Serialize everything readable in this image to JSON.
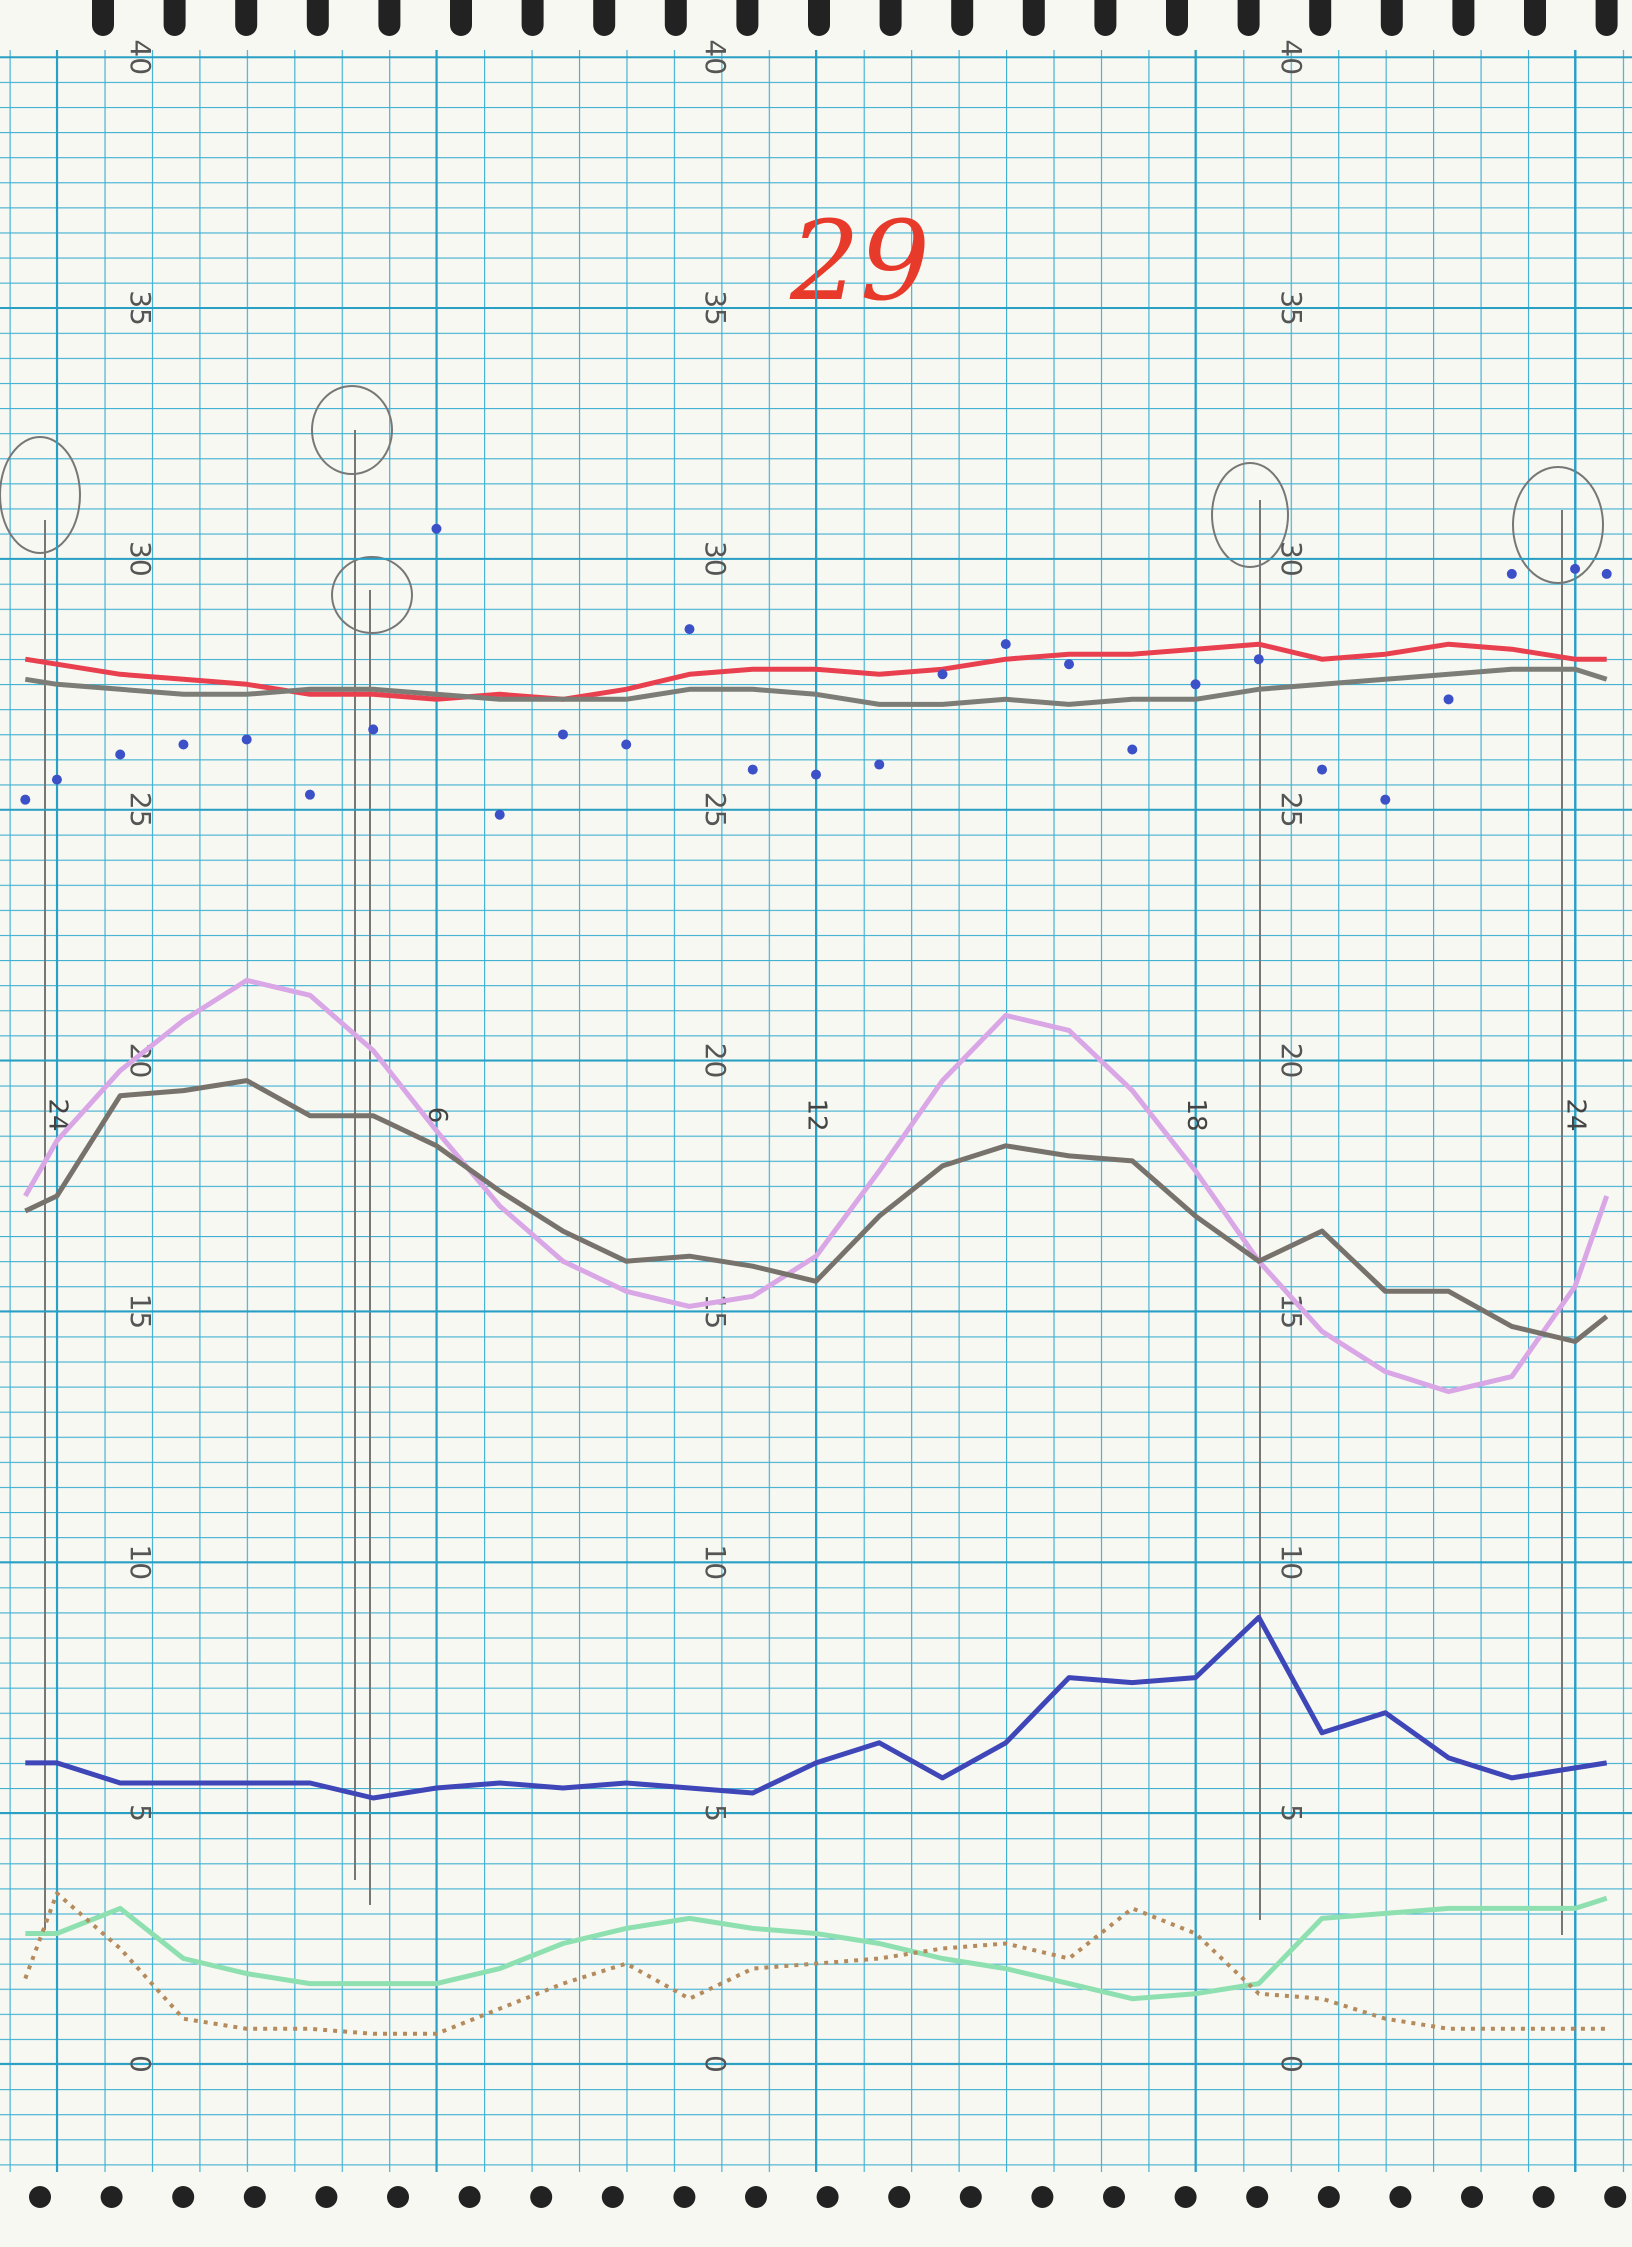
{
  "chart_data": {
    "type": "line",
    "annotation": "29",
    "x": [
      -0.5,
      0,
      1,
      2,
      3,
      4,
      5,
      6,
      7,
      8,
      9,
      10,
      11,
      12,
      13,
      14,
      15,
      16,
      17,
      18,
      19,
      20,
      21,
      22,
      23,
      24,
      24.5
    ],
    "series": [
      {
        "color": "#e8404f",
        "style": "line",
        "values": [
          28.0,
          27.9,
          27.7,
          27.6,
          27.5,
          27.3,
          27.3,
          27.2,
          27.3,
          27.2,
          27.4,
          27.7,
          27.8,
          27.8,
          27.7,
          27.8,
          28.0,
          28.1,
          28.1,
          28.2,
          28.3,
          28.0,
          28.1,
          28.3,
          28.2,
          28.0,
          28.0
        ]
      },
      {
        "color": "#7d7d78",
        "style": "line",
        "values": [
          27.6,
          27.5,
          27.4,
          27.3,
          27.3,
          27.4,
          27.4,
          27.3,
          27.2,
          27.2,
          27.2,
          27.4,
          27.4,
          27.3,
          27.1,
          27.1,
          27.2,
          27.1,
          27.2,
          27.2,
          27.4,
          27.5,
          27.6,
          27.7,
          27.8,
          27.8,
          27.6
        ]
      },
      {
        "color": "#3c50c8",
        "style": "dots",
        "values": [
          25.2,
          25.6,
          26.1,
          26.3,
          26.4,
          25.3,
          26.6,
          30.6,
          24.9,
          26.5,
          26.3,
          28.6,
          25.8,
          25.7,
          25.9,
          27.7,
          28.3,
          27.9,
          26.2,
          27.5,
          28.0,
          25.8,
          25.2,
          27.2,
          29.7,
          29.8,
          29.7
        ]
      },
      {
        "color": "#d9a6e6",
        "style": "line",
        "values": [
          17.3,
          18.4,
          19.8,
          20.8,
          21.6,
          21.3,
          20.2,
          18.6,
          17.1,
          16.0,
          15.4,
          15.1,
          15.3,
          16.1,
          17.8,
          19.6,
          20.9,
          20.6,
          19.4,
          17.8,
          16.0,
          14.6,
          13.8,
          13.4,
          13.7,
          15.5,
          17.3
        ]
      },
      {
        "color": "#77736c",
        "style": "line",
        "values": [
          17.0,
          17.3,
          19.3,
          19.4,
          19.6,
          18.9,
          18.9,
          18.3,
          17.4,
          16.6,
          16.0,
          16.1,
          15.9,
          15.6,
          16.9,
          17.9,
          18.3,
          18.1,
          18.0,
          16.9,
          16.0,
          16.6,
          15.4,
          15.4,
          14.7,
          14.4,
          14.9
        ]
      },
      {
        "color": "#3f46b8",
        "style": "line",
        "values": [
          6.0,
          6.0,
          5.6,
          5.6,
          5.6,
          5.6,
          5.3,
          5.5,
          5.6,
          5.5,
          5.6,
          5.5,
          5.4,
          6.0,
          6.4,
          5.7,
          6.4,
          7.7,
          7.6,
          7.7,
          8.9,
          6.6,
          7.0,
          6.1,
          5.7,
          5.9,
          6.0
        ]
      },
      {
        "color": "#8fe0b0",
        "style": "line",
        "values": [
          2.6,
          2.6,
          3.1,
          2.1,
          1.8,
          1.6,
          1.6,
          1.6,
          1.9,
          2.4,
          2.7,
          2.9,
          2.7,
          2.6,
          2.4,
          2.1,
          1.9,
          1.6,
          1.3,
          1.4,
          1.6,
          2.9,
          3.0,
          3.1,
          3.1,
          3.1,
          3.3
        ]
      },
      {
        "color": "#b58a5c",
        "style": "dashed",
        "values": [
          1.7,
          3.4,
          2.3,
          0.9,
          0.7,
          0.7,
          0.6,
          0.6,
          1.1,
          1.6,
          2.0,
          1.3,
          1.9,
          2.0,
          2.1,
          2.3,
          2.4,
          2.1,
          3.1,
          2.6,
          1.4,
          1.3,
          0.9,
          0.7,
          0.7,
          0.7,
          0.7
        ]
      }
    ],
    "xlim": [
      -0.9,
      24.9
    ],
    "xticks": [
      {
        "value": 0,
        "label": "24"
      },
      6,
      12,
      18,
      {
        "value": 24,
        "label": "24"
      }
    ],
    "ylim": [
      -3.65,
      41.14
    ],
    "yticks": [
      0,
      5,
      10,
      15,
      20,
      25,
      30,
      35,
      40
    ],
    "grid": true
  }
}
